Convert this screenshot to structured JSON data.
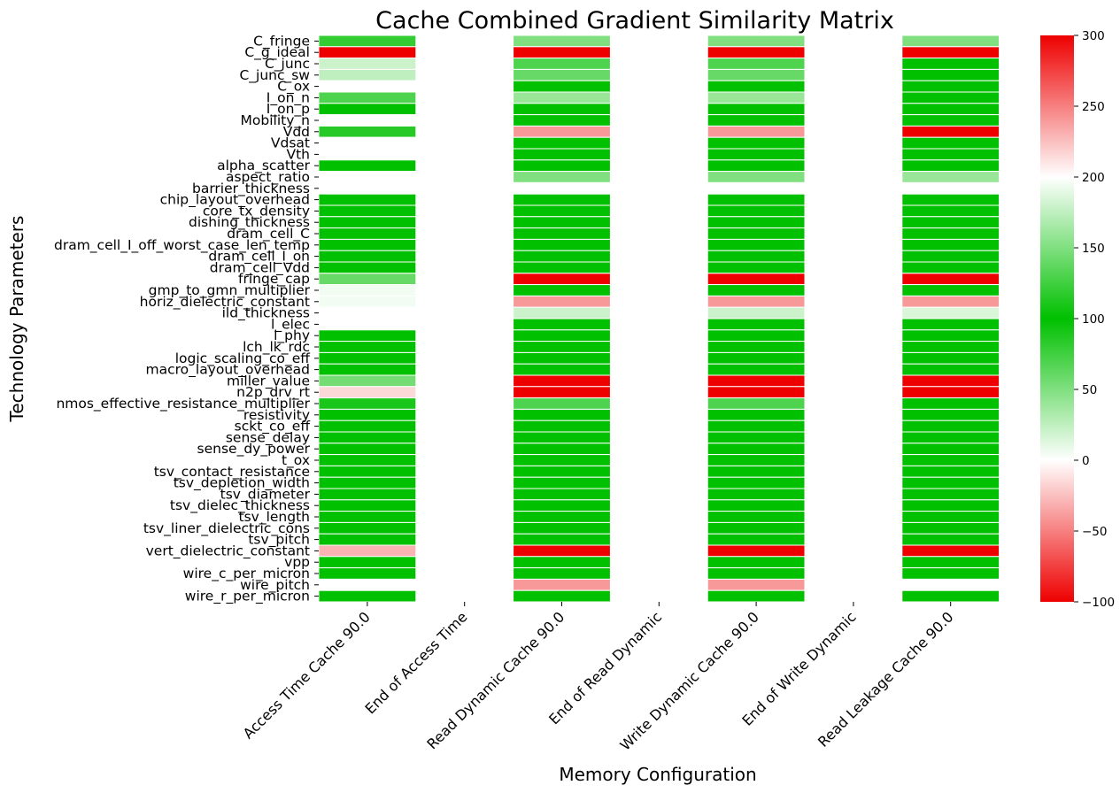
{
  "chart_data": {
    "type": "heatmap",
    "title": "Cache Combined Gradient Similarity Matrix",
    "xlabel": "Memory Configuration",
    "ylabel": "Technology Parameters",
    "columns": [
      "Access Time Cache 90.0",
      "End of Access Time",
      "Read Dynamic Cache 90.0",
      "End of Read Dynamic",
      "Write Dynamic Cache 90.0",
      "End of Write Dynamic",
      "Read Leakage Cache 90.0"
    ],
    "rows": [
      "C_fringe",
      "C_g_ideal",
      "C_junc",
      "C_junc_sw",
      "C_ox",
      "I_on_n",
      "I_on_p",
      "Mobility_n",
      "Vdd",
      "Vdsat",
      "Vth",
      "alpha_scatter",
      "aspect_ratio",
      "barrier_thickness",
      "chip_layout_overhead",
      "core_tx_density",
      "dishing_thickness",
      "dram_cell_C",
      "dram_cell_I_off_worst_case_len_temp",
      "dram_cell_I_on",
      "dram_cell_Vdd",
      "fringe_cap",
      "gmp_to_gmn_multiplier",
      "horiz_dielectric_constant",
      "ild_thickness",
      "l_elec",
      "l_phy",
      "lch_lk_rdc",
      "logic_scaling_co_eff",
      "macro_layout_overhead",
      "miller_value",
      "n2p_drv_rt",
      "nmos_effective_resistance_multiplier",
      "resistivity",
      "sckt_co_eff",
      "sense_delay",
      "sense_dy_power",
      "t_ox",
      "tsv_contact_resistance",
      "tsv_depletion_width",
      "tsv_diameter",
      "tsv_dielec_thickness",
      "tsv_length",
      "tsv_liner_dielectric_cons",
      "tsv_pitch",
      "vert_dielectric_constant",
      "vpp",
      "wire_c_per_micron",
      "wire_pitch",
      "wire_r_per_micron"
    ],
    "values": [
      [
        80,
        null,
        50,
        null,
        50,
        null,
        50
      ],
      [
        -100,
        null,
        -100,
        null,
        -100,
        null,
        -100
      ],
      [
        20,
        null,
        70,
        null,
        70,
        null,
        100
      ],
      [
        25,
        null,
        60,
        null,
        60,
        null,
        100
      ],
      [
        0,
        null,
        100,
        null,
        100,
        null,
        100
      ],
      [
        70,
        null,
        40,
        null,
        40,
        null,
        100
      ],
      [
        100,
        null,
        100,
        null,
        100,
        null,
        100
      ],
      [
        0,
        null,
        100,
        null,
        100,
        null,
        100
      ],
      [
        85,
        null,
        -40,
        null,
        -40,
        null,
        -100
      ],
      [
        0,
        null,
        100,
        null,
        100,
        null,
        100
      ],
      [
        0,
        null,
        100,
        null,
        100,
        null,
        100
      ],
      [
        100,
        null,
        100,
        null,
        100,
        null,
        100
      ],
      [
        0,
        null,
        50,
        null,
        50,
        null,
        40
      ],
      [
        0,
        null,
        0,
        null,
        0,
        null,
        0
      ],
      [
        100,
        null,
        100,
        null,
        100,
        null,
        100
      ],
      [
        100,
        null,
        100,
        null,
        100,
        null,
        100
      ],
      [
        100,
        null,
        100,
        null,
        100,
        null,
        100
      ],
      [
        100,
        null,
        100,
        null,
        100,
        null,
        100
      ],
      [
        100,
        null,
        100,
        null,
        100,
        null,
        100
      ],
      [
        100,
        null,
        100,
        null,
        100,
        null,
        100
      ],
      [
        100,
        null,
        100,
        null,
        100,
        null,
        100
      ],
      [
        60,
        null,
        -100,
        null,
        -100,
        null,
        -100
      ],
      [
        5,
        null,
        100,
        null,
        100,
        null,
        100
      ],
      [
        5,
        null,
        -40,
        null,
        -40,
        null,
        -40
      ],
      [
        0,
        null,
        20,
        null,
        20,
        null,
        15
      ],
      [
        0,
        null,
        100,
        null,
        100,
        null,
        100
      ],
      [
        100,
        null,
        100,
        null,
        100,
        null,
        100
      ],
      [
        100,
        null,
        100,
        null,
        100,
        null,
        100
      ],
      [
        100,
        null,
        100,
        null,
        100,
        null,
        100
      ],
      [
        100,
        null,
        100,
        null,
        100,
        null,
        100
      ],
      [
        55,
        null,
        -100,
        null,
        -100,
        null,
        -100
      ],
      [
        -15,
        null,
        -100,
        null,
        -100,
        null,
        -100
      ],
      [
        90,
        null,
        70,
        null,
        70,
        null,
        100
      ],
      [
        100,
        null,
        100,
        null,
        100,
        null,
        100
      ],
      [
        100,
        null,
        100,
        null,
        100,
        null,
        100
      ],
      [
        100,
        null,
        100,
        null,
        100,
        null,
        100
      ],
      [
        100,
        null,
        100,
        null,
        100,
        null,
        100
      ],
      [
        100,
        null,
        100,
        null,
        100,
        null,
        100
      ],
      [
        100,
        null,
        100,
        null,
        100,
        null,
        100
      ],
      [
        100,
        null,
        100,
        null,
        100,
        null,
        100
      ],
      [
        100,
        null,
        100,
        null,
        100,
        null,
        100
      ],
      [
        100,
        null,
        100,
        null,
        100,
        null,
        100
      ],
      [
        100,
        null,
        100,
        null,
        100,
        null,
        100
      ],
      [
        100,
        null,
        100,
        null,
        100,
        null,
        100
      ],
      [
        100,
        null,
        100,
        null,
        100,
        null,
        100
      ],
      [
        -30,
        null,
        -100,
        null,
        -100,
        null,
        -100
      ],
      [
        100,
        null,
        100,
        null,
        100,
        null,
        100
      ],
      [
        100,
        null,
        100,
        null,
        100,
        null,
        100
      ],
      [
        0,
        null,
        -40,
        null,
        -40,
        null,
        0
      ],
      [
        100,
        null,
        100,
        null,
        100,
        null,
        100
      ]
    ],
    "colorbar": {
      "min": -100,
      "max": 300,
      "ticks": [
        -100,
        -50,
        0,
        50,
        100,
        150,
        200,
        250,
        300
      ],
      "stops": [
        {
          "value": -100,
          "color": "#ee0000"
        },
        {
          "value": 0,
          "color": "#ffffff"
        },
        {
          "value": 100,
          "color": "#00c000"
        },
        {
          "value": 200,
          "color": "#ffffff"
        },
        {
          "value": 300,
          "color": "#ee0000"
        }
      ]
    },
    "grid": false,
    "legend": "colorbar-right"
  }
}
